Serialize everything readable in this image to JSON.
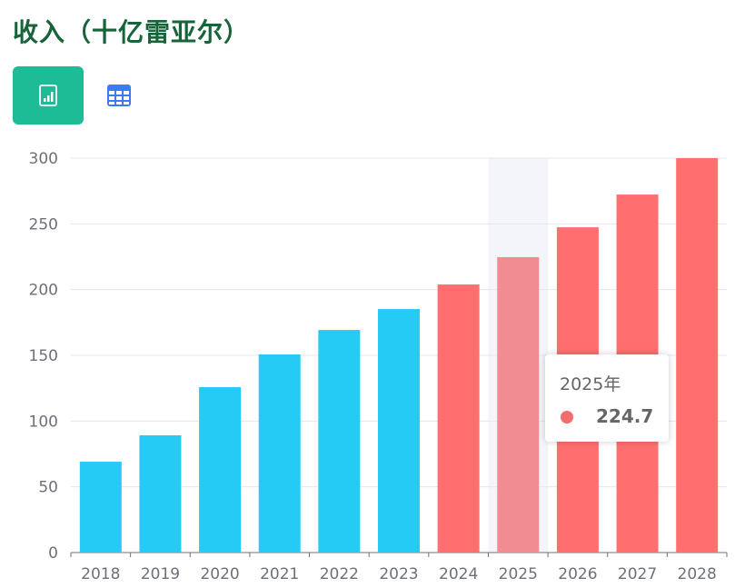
{
  "header": {
    "title": "收入（十亿雷亚尔）"
  },
  "view_buttons": [
    {
      "icon": "bar-chart-icon",
      "active": true
    },
    {
      "icon": "table-icon",
      "active": false
    }
  ],
  "tooltip": {
    "title": "2025年",
    "value": "224.7",
    "color": "#f26d6d"
  },
  "chart_data": {
    "type": "bar",
    "title": "收入（十亿雷亚尔）",
    "categories": [
      "2018",
      "2019",
      "2020",
      "2021",
      "2022",
      "2023",
      "2024",
      "2025",
      "2026",
      "2027",
      "2028"
    ],
    "values": [
      69.1,
      89.2,
      125.8,
      150.7,
      169.3,
      185.2,
      203.9,
      224.7,
      247.4,
      272.3,
      300
    ],
    "colors": [
      "#26cbf5",
      "#26cbf5",
      "#26cbf5",
      "#26cbf5",
      "#26cbf5",
      "#26cbf5",
      "#ff6f6f",
      "#ff6f6f",
      "#ff6f6f",
      "#ff6f6f",
      "#ff6f6f"
    ],
    "highlighted": "2025",
    "highlight_color": "#f08c92",
    "ylim": [
      0,
      300
    ],
    "yticks": [
      "0",
      "50",
      "100",
      "150",
      "200",
      "250",
      "300"
    ],
    "grid": true
  }
}
